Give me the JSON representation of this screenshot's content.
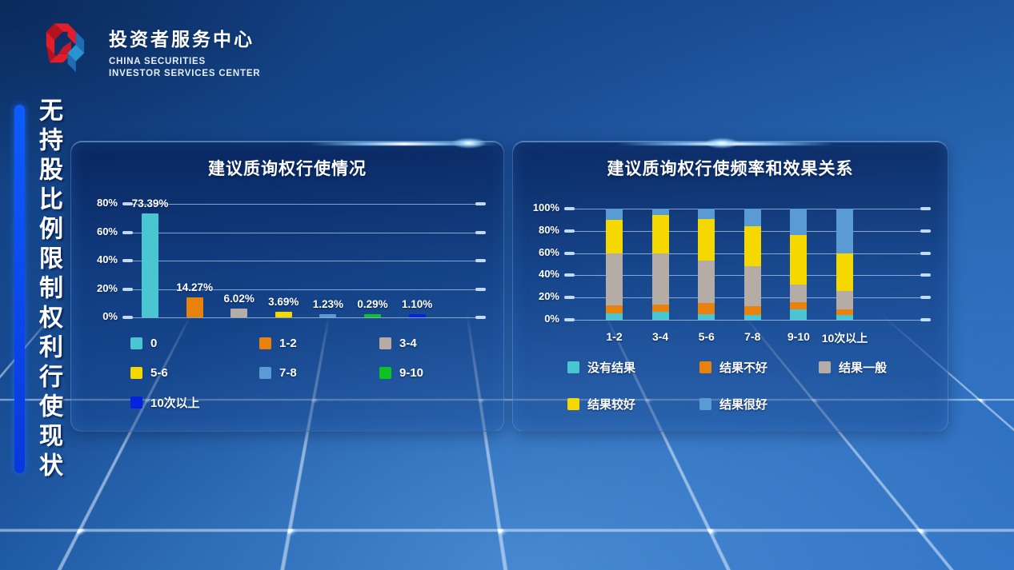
{
  "brand": {
    "title": "投资者服务中心",
    "subtitle1": "CHINA SECURITIES",
    "subtitle2": "INVESTOR SERVICES CENTER"
  },
  "sidebar": {
    "title": "无持股比例限制权利行使现状"
  },
  "colors": {
    "accent_bar": "#0d5cff",
    "cyan": "#49C6D2",
    "orange": "#E8820C",
    "gray": "#B5ACA5",
    "yellow": "#F5D800",
    "light_blue": "#5B9BD5",
    "green": "#0EC321",
    "dark_blue": "#0522E0"
  },
  "chart_data": [
    {
      "type": "bar",
      "title": "建议质询权行使情况",
      "categories": [
        "0",
        "1-2",
        "3-4",
        "5-6",
        "7-8",
        "9-10",
        "10次以上"
      ],
      "values": [
        73.39,
        14.27,
        6.02,
        3.69,
        1.23,
        0.29,
        1.1
      ],
      "labels": [
        "73.39%",
        "14.27%",
        "6.02%",
        "3.69%",
        "1.23%",
        "0.29%",
        "1.10%"
      ],
      "colors": [
        "#49C6D2",
        "#E8820C",
        "#B5ACA5",
        "#F5D800",
        "#5B9BD5",
        "#0EC321",
        "#0522E0"
      ],
      "yticks": [
        "80%",
        "60%",
        "40%",
        "20%",
        "0%"
      ],
      "ylim": [
        0,
        80
      ],
      "grid": true,
      "legend_position": "bottom"
    },
    {
      "type": "bar",
      "stacked": true,
      "title": "建议质询权行使频率和效果关系",
      "categories": [
        "1-2",
        "3-4",
        "5-6",
        "7-8",
        "9-10",
        "10次以上"
      ],
      "series": [
        {
          "name": "没有结果",
          "color": "#49C6D2",
          "values": [
            6,
            7,
            5,
            4,
            9,
            4
          ]
        },
        {
          "name": "结果不好",
          "color": "#E8820C",
          "values": [
            7,
            7,
            10,
            8,
            7,
            5
          ]
        },
        {
          "name": "结果一般",
          "color": "#B5ACA5",
          "values": [
            47,
            46,
            38,
            36,
            16,
            17
          ]
        },
        {
          "name": "结果较好",
          "color": "#F5D800",
          "values": [
            30,
            34,
            38,
            36,
            44,
            34
          ]
        },
        {
          "name": "结果很好",
          "color": "#5B9BD5",
          "values": [
            10,
            6,
            9,
            16,
            24,
            40
          ]
        }
      ],
      "yticks": [
        "100%",
        "80%",
        "60%",
        "40%",
        "20%",
        "0%"
      ],
      "ylim": [
        0,
        100
      ],
      "grid": true,
      "legend_position": "bottom"
    }
  ]
}
